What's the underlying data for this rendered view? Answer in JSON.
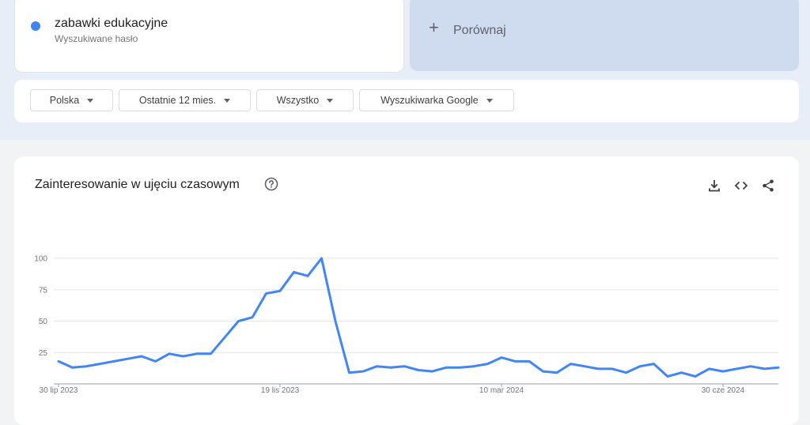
{
  "search_term": {
    "name": "zabawki edukacyjne",
    "subtitle": "Wyszukiwane hasło",
    "color": "#4285f4"
  },
  "compare": {
    "plus": "+",
    "label": "Porównaj"
  },
  "filters": [
    {
      "label": "Polska"
    },
    {
      "label": "Ostatnie 12 mies."
    },
    {
      "label": "Wszystko"
    },
    {
      "label": "Wyszukiwarka Google"
    }
  ],
  "chart_section": {
    "title": "Zainteresowanie w ujęciu czasowym",
    "icons": [
      "help-icon",
      "download-icon",
      "embed-icon",
      "share-icon"
    ]
  },
  "chart_data": {
    "type": "line",
    "xlabel": "",
    "ylabel": "",
    "ylim": [
      0,
      100
    ],
    "y_ticks": [
      25,
      50,
      75,
      100
    ],
    "x_ticks": [
      "30 lip 2023",
      "19 lis 2023",
      "10 mar 2024",
      "30 cze 2024"
    ],
    "x_tick_indices": [
      0,
      16,
      32,
      48
    ],
    "grid": true,
    "series": [
      {
        "color": "#4285f4",
        "values": [
          18,
          13,
          14,
          16,
          18,
          20,
          22,
          18,
          24,
          22,
          24,
          24,
          37,
          50,
          53,
          72,
          74,
          89,
          86,
          100,
          50,
          9,
          10,
          14,
          13,
          14,
          11,
          10,
          13,
          13,
          14,
          16,
          21,
          18,
          18,
          10,
          9,
          16,
          14,
          12,
          12,
          9,
          14,
          16,
          6,
          9,
          6,
          12,
          10,
          12,
          14,
          12,
          13
        ]
      }
    ]
  }
}
